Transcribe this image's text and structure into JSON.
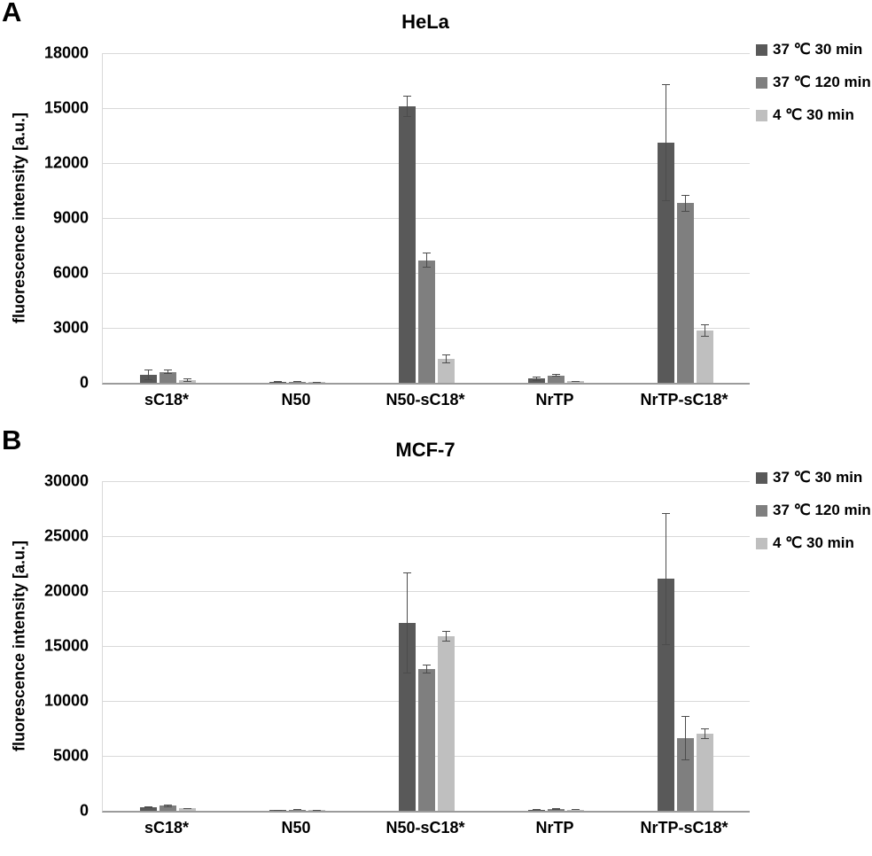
{
  "chart_data": [
    {
      "type": "bar",
      "panel_label": "A",
      "title": "HeLa",
      "ylabel": "fluorescence intensity [a.u.]",
      "xlabel": "",
      "categories": [
        "sC18*",
        "N50",
        "N50-sC18*",
        "NrTP",
        "NrTP-sC18*"
      ],
      "series": [
        {
          "name": "37 ℃ 30 min",
          "color": "#595959",
          "values": [
            450,
            50,
            15100,
            220,
            13100
          ],
          "errors": [
            300,
            30,
            600,
            120,
            3200
          ]
        },
        {
          "name": "37 ℃ 120 min",
          "color": "#7f7f7f",
          "values": [
            600,
            60,
            6700,
            400,
            9800
          ],
          "errors": [
            120,
            30,
            400,
            80,
            450
          ]
        },
        {
          "name": "4 ℃ 30 min",
          "color": "#bfbfbf",
          "values": [
            160,
            40,
            1300,
            80,
            2850
          ],
          "errors": [
            90,
            20,
            250,
            40,
            350
          ]
        }
      ],
      "ylim": [
        0,
        18000
      ],
      "yticks": [
        0,
        3000,
        6000,
        9000,
        12000,
        15000,
        18000
      ],
      "grid": true,
      "legend_position": "top-right",
      "error_bar_color": "#4c4c4c"
    },
    {
      "type": "bar",
      "panel_label": "B",
      "title": "MCF-7",
      "ylabel": "fluorescence intensity [a.u.]",
      "xlabel": "",
      "categories": [
        "sC18*",
        "N50",
        "N50-sC18*",
        "NrTP",
        "NrTP-sC18*"
      ],
      "series": [
        {
          "name": "37 ℃ 30 min",
          "color": "#595959",
          "values": [
            300,
            60,
            17100,
            120,
            21100
          ],
          "errors": [
            80,
            30,
            4600,
            60,
            6000
          ]
        },
        {
          "name": "37 ℃ 120 min",
          "color": "#7f7f7f",
          "values": [
            450,
            100,
            12900,
            200,
            6600
          ],
          "errors": [
            110,
            40,
            400,
            80,
            2000
          ]
        },
        {
          "name": "4 ℃ 30 min",
          "color": "#bfbfbf",
          "values": [
            220,
            60,
            15900,
            90,
            7000
          ],
          "errors": [
            60,
            30,
            500,
            40,
            500
          ]
        }
      ],
      "ylim": [
        0,
        30000
      ],
      "yticks": [
        0,
        5000,
        10000,
        15000,
        20000,
        25000,
        30000
      ],
      "grid": true,
      "legend_position": "top-right",
      "error_bar_color": "#4c4c4c"
    }
  ]
}
